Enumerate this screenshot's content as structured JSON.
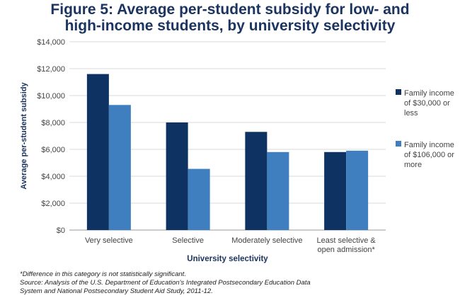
{
  "chart_data": {
    "type": "bar",
    "title_lines": [
      "Figure 5: Average per-student subsidy for low- and",
      "high-income students, by university selectivity"
    ],
    "xlabel": "University selectivity",
    "ylabel": "Average per-student subsidy",
    "categories": [
      [
        "Very selective"
      ],
      [
        "Selective"
      ],
      [
        "Moderately selective"
      ],
      [
        "Least selective &",
        "open admission*"
      ]
    ],
    "series": [
      {
        "name_lines": [
          "Family income",
          "of $30,000 or",
          "less"
        ],
        "color": "#0e3362",
        "values": [
          11600,
          8000,
          7300,
          5800
        ]
      },
      {
        "name_lines": [
          "Family income",
          "of $106,000 or",
          "more"
        ],
        "color": "#3f7fbf",
        "values": [
          9300,
          4550,
          5800,
          5900
        ]
      }
    ],
    "ylim": [
      0,
      14000
    ],
    "yticks": [
      0,
      2000,
      4000,
      6000,
      8000,
      10000,
      12000,
      14000
    ],
    "ytick_labels": [
      "$0",
      "$2,000",
      "$4,000",
      "$6,000",
      "$8,000",
      "$10,000",
      "$12,000",
      "$14,000"
    ],
    "grid": true,
    "legend_position": "right"
  },
  "notes": [
    "*Difference in this category is not statistically significant.",
    "Source: Analysis of the U.S. Department of Education's Integrated Postsecondary Education Data",
    "System and National Postsecondary Student Aid Study, 2011-12."
  ]
}
